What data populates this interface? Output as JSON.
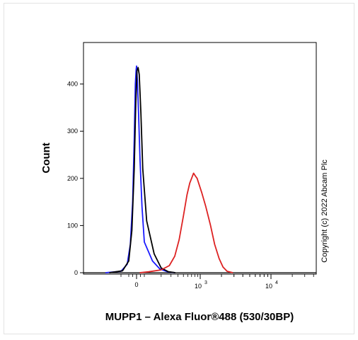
{
  "chart_data": {
    "type": "line",
    "xlabel": "MUPP1 – Alexa Fluor®488 (530/30BP)",
    "ylabel": "Count",
    "x_scale": "logicle",
    "ylim": [
      0,
      440
    ],
    "y_ticks": [
      {
        "value": 0,
        "label": "0"
      },
      {
        "value": 100,
        "label": "100"
      },
      {
        "value": 200,
        "label": "200"
      },
      {
        "value": 300,
        "label": "300"
      },
      {
        "value": 400,
        "label": "400"
      }
    ],
    "x_ticks": [
      {
        "value": 0,
        "label": "0"
      },
      {
        "value": 1000,
        "base": "10",
        "exp": "3"
      },
      {
        "value": 10000,
        "base": "10",
        "exp": "4"
      }
    ],
    "series": [
      {
        "color": "#1a1aff",
        "x": [
          -400,
          -200,
          -120,
          -80,
          -50,
          -30,
          -15,
          -5,
          0,
          10,
          25,
          45,
          70,
          100,
          140,
          190,
          260,
          350
        ],
        "y": [
          0,
          3,
          18,
          60,
          150,
          280,
          400,
          430,
          438,
          410,
          340,
          240,
          140,
          65,
          25,
          8,
          2,
          0
        ]
      },
      {
        "color": "#000000",
        "x": [
          -350,
          -180,
          -100,
          -60,
          -30,
          -10,
          5,
          20,
          35,
          55,
          80,
          110,
          150,
          200,
          270,
          360
        ],
        "y": [
          0,
          4,
          25,
          90,
          220,
          360,
          428,
          435,
          420,
          340,
          220,
          110,
          40,
          10,
          2,
          0
        ]
      },
      {
        "color": "#dd2222",
        "x": [
          40,
          120,
          200,
          280,
          350,
          420,
          500,
          580,
          650,
          700,
          760,
          820,
          880,
          950,
          1050,
          1200,
          1400,
          1600,
          1850,
          2100,
          2400,
          2900
        ],
        "y": [
          0,
          2,
          6,
          15,
          35,
          70,
          120,
          165,
          190,
          200,
          211,
          205,
          200,
          188,
          170,
          140,
          100,
          60,
          30,
          12,
          3,
          0
        ]
      }
    ]
  },
  "copyright": "Copyright (c) 2022 Abcam Plc"
}
